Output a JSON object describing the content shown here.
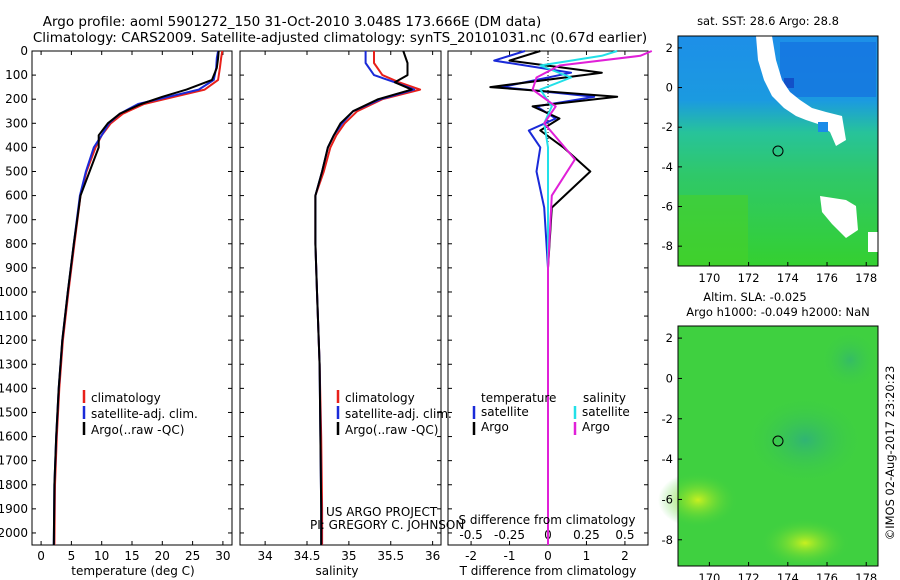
{
  "titles": {
    "line1": "Argo profile: aoml 5901272_150 31-Oct-2010 3.048S 173.666E (DM data)",
    "line2": "Climatology: CARS2009. Satellite-adjusted climatology: synTS_20101031.nc (0.67d earlier)"
  },
  "colors": {
    "clim": "#e8201a",
    "sat": "#1a2ad8",
    "argo": "#000000",
    "sal_sat": "#22e0e8",
    "sal_argo": "#e020d8"
  },
  "depth_axis": {
    "min": 0,
    "max": 2050,
    "ticks": [
      0,
      100,
      200,
      300,
      400,
      500,
      600,
      700,
      800,
      900,
      1000,
      1100,
      1200,
      1300,
      1400,
      1500,
      1600,
      1700,
      1800,
      1900,
      2000
    ]
  },
  "chart_data": [
    {
      "type": "line",
      "id": "temperature",
      "xlabel": "temperature (deg C)",
      "xlim": [
        -1.5,
        31.5
      ],
      "ylim": [
        0,
        2050
      ],
      "xticks": [
        0,
        5,
        10,
        15,
        20,
        25,
        30
      ],
      "legend": {
        "placement": "lower-left",
        "entries": [
          "climatology",
          "satellite-adj. clim.",
          "Argo(..raw -QC)"
        ]
      },
      "series": [
        {
          "name": "climatology",
          "color": "#e8201a",
          "x": [
            29.9,
            29.7,
            29.5,
            29.2,
            27,
            22,
            17,
            13.5,
            11.5,
            10,
            9,
            7.5,
            6.5,
            5.5,
            4.5,
            3.6,
            3,
            2.6,
            2.3,
            2.2
          ],
          "depth": [
            0,
            30,
            70,
            120,
            160,
            190,
            220,
            260,
            300,
            350,
            400,
            500,
            600,
            800,
            1000,
            1200,
            1400,
            1600,
            1800,
            2050
          ]
        },
        {
          "name": "satellite-adj. clim.",
          "color": "#1a2ad8",
          "x": [
            29.2,
            29,
            28.9,
            28.5,
            26,
            21,
            16,
            13,
            11.2,
            10,
            8.7,
            7.4,
            6.4,
            5.4,
            4.4,
            3.5,
            2.9,
            2.5,
            2.2,
            2.1
          ],
          "depth": [
            0,
            30,
            70,
            120,
            160,
            190,
            220,
            260,
            300,
            350,
            400,
            500,
            600,
            800,
            1000,
            1200,
            1400,
            1600,
            1800,
            2050
          ]
        },
        {
          "name": "Argo(..raw -QC)",
          "color": "#000000",
          "x": [
            29.3,
            29.2,
            29,
            28.2,
            24,
            20,
            16.5,
            13,
            11,
            9.5,
            9.5,
            8,
            6.5,
            5.4,
            4.4,
            3.5,
            2.9,
            2.5,
            2.2,
            2.1
          ],
          "depth": [
            0,
            30,
            70,
            120,
            160,
            190,
            220,
            260,
            300,
            350,
            400,
            500,
            600,
            800,
            1000,
            1200,
            1400,
            1600,
            1800,
            2050
          ]
        }
      ]
    },
    {
      "type": "line",
      "id": "salinity",
      "xlabel": "salinity",
      "xlim": [
        33.7,
        36.1
      ],
      "ylim": [
        0,
        2050
      ],
      "xticks": [
        34,
        34.5,
        35,
        35.5,
        36
      ],
      "legend": {
        "placement": "lower-left",
        "entries": [
          "climatology",
          "satellite-adj. clim.",
          "Argo(..raw -QC)"
        ]
      },
      "series": [
        {
          "name": "climatology",
          "color": "#e8201a",
          "x": [
            35.3,
            35.3,
            35.4,
            35.6,
            35.85,
            35.4,
            35.1,
            34.95,
            34.85,
            34.78,
            34.7,
            34.6,
            34.6,
            34.62,
            34.65,
            34.67,
            34.68,
            34.68
          ],
          "depth": [
            0,
            50,
            100,
            130,
            160,
            200,
            250,
            300,
            350,
            400,
            500,
            600,
            800,
            1000,
            1300,
            1600,
            1900,
            2050
          ]
        },
        {
          "name": "satellite-adj. clim.",
          "color": "#1a2ad8",
          "x": [
            35.2,
            35.2,
            35.3,
            35.55,
            35.78,
            35.38,
            35.05,
            34.92,
            34.82,
            34.75,
            34.68,
            34.6,
            34.6,
            34.62,
            34.65,
            34.66,
            34.67,
            34.67
          ],
          "depth": [
            0,
            50,
            100,
            130,
            160,
            200,
            250,
            300,
            350,
            400,
            500,
            600,
            800,
            1000,
            1300,
            1600,
            1900,
            2050
          ]
        },
        {
          "name": "Argo(..raw -QC)",
          "color": "#000000",
          "x": [
            35.65,
            35.7,
            35.7,
            35.55,
            35.75,
            35.35,
            35.05,
            34.9,
            34.82,
            34.75,
            34.68,
            34.6,
            34.6,
            34.62,
            34.65,
            34.66,
            34.67,
            34.67
          ],
          "depth": [
            0,
            50,
            100,
            130,
            160,
            200,
            250,
            300,
            350,
            400,
            500,
            600,
            800,
            1000,
            1300,
            1600,
            1900,
            2050
          ]
        }
      ]
    },
    {
      "type": "line",
      "id": "difference",
      "xlabel_top": "S difference from climatology",
      "xlabel": "T difference from climatology",
      "xlim": [
        -2.6,
        2.6
      ],
      "ylim": [
        0,
        2050
      ],
      "xticks_T": [
        -2,
        -1,
        0,
        1,
        2
      ],
      "xticks_S": [
        "-0.5",
        "-0.25",
        "0",
        "0.25",
        "0.5"
      ],
      "legend": {
        "placement": "lower-left",
        "temperature_title": "temperature",
        "salinity_title": "salinity",
        "entries": [
          "satellite",
          "Argo",
          "satellite",
          "Argo"
        ]
      },
      "series": [
        {
          "name": "T satellite",
          "color": "#1a2ad8",
          "x": [
            -0.6,
            -1.4,
            0.6,
            -1.2,
            1.2,
            -0.3,
            0.2,
            -0.5,
            -0.2,
            -0.3,
            -0.1,
            0,
            0,
            0
          ],
          "depth": [
            0,
            40,
            90,
            150,
            190,
            230,
            280,
            330,
            400,
            500,
            650,
            900,
            1500,
            2050
          ]
        },
        {
          "name": "T Argo",
          "color": "#000000",
          "x": [
            -0.2,
            -1,
            1.4,
            -1.5,
            1.8,
            -0.4,
            0.3,
            -0.2,
            0.4,
            1.1,
            0.1,
            0,
            0,
            0
          ],
          "depth": [
            0,
            40,
            90,
            150,
            190,
            230,
            280,
            330,
            400,
            500,
            650,
            900,
            1500,
            2050
          ]
        },
        {
          "name": "S satellite",
          "color": "#22e0e8",
          "x": [
            1.8,
            1.4,
            -0.2,
            0.6,
            -0.2,
            0.1,
            -0.1,
            0,
            0,
            0,
            0,
            0
          ],
          "depth": [
            0,
            20,
            60,
            110,
            160,
            230,
            300,
            400,
            600,
            900,
            1500,
            2050
          ]
        },
        {
          "name": "S Argo",
          "color": "#e020d8",
          "x": [
            2.7,
            2.4,
            0.3,
            -0.3,
            -0.4,
            0.2,
            -0.1,
            0.7,
            0.1,
            0,
            0,
            0
          ],
          "depth": [
            0,
            20,
            60,
            110,
            160,
            230,
            300,
            450,
            600,
            900,
            1500,
            2050
          ]
        }
      ]
    }
  ],
  "maps": {
    "sst": {
      "title": "sat. SST: 28.6 Argo: 28.8",
      "xticks": [
        "170",
        "172",
        "174",
        "176",
        "178"
      ],
      "yticks": [
        "2",
        "0",
        "-2",
        "-4",
        "-6",
        "-8"
      ]
    },
    "sla": {
      "title_line1": "Altim. SLA: -0.025",
      "title_line2": "Argo h1000: -0.049 h2000: NaN",
      "xticks": [
        "170",
        "172",
        "174",
        "176",
        "178"
      ],
      "yticks": [
        "2",
        "0",
        "-2",
        "-4",
        "-6",
        "-8"
      ]
    }
  },
  "credits": {
    "project": "US ARGO PROJECT",
    "pi": "PI: GREGORY C. JOHNSON",
    "stamp": "©IMOS 02-Aug-2017 23:20:23"
  }
}
